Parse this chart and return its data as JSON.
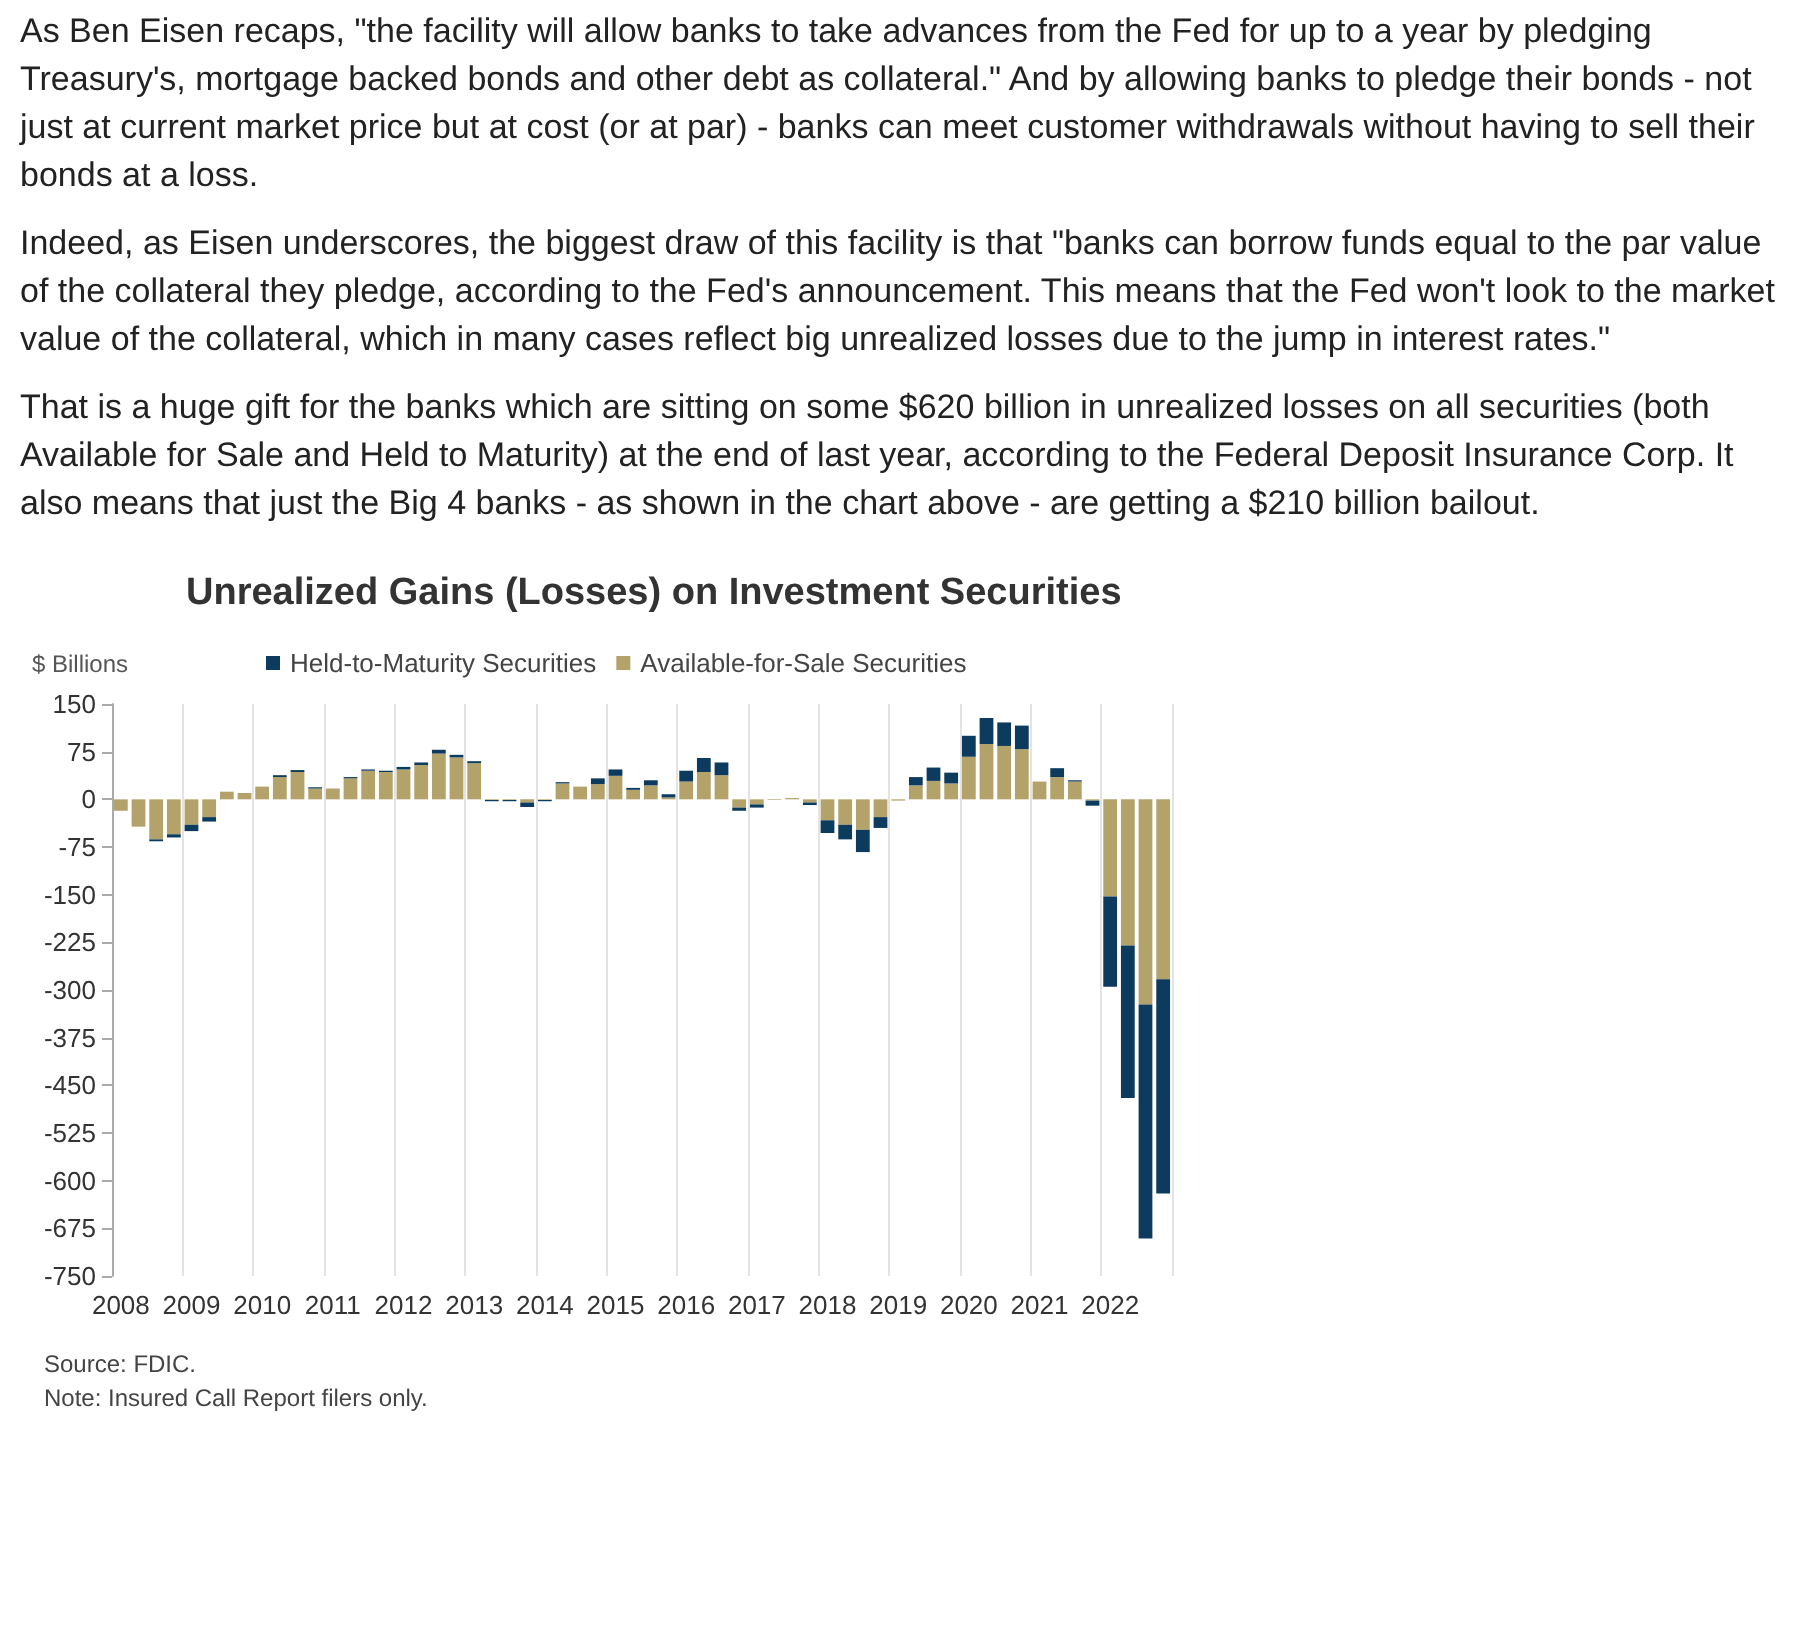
{
  "chart_data": {
    "type": "bar",
    "title": "Unrealized Gains (Losses) on Investment Securities",
    "ylabel": "$ Billions",
    "categories": [
      "2008",
      null,
      null,
      null,
      "2009",
      null,
      null,
      null,
      "2010",
      null,
      null,
      null,
      "2011",
      null,
      null,
      null,
      "2012",
      null,
      null,
      null,
      "2013",
      null,
      null,
      null,
      "2014",
      null,
      null,
      null,
      "2015",
      null,
      null,
      null,
      "2016",
      null,
      null,
      null,
      "2017",
      null,
      null,
      null,
      "2018",
      null,
      null,
      null,
      "2019",
      null,
      null,
      null,
      "2020",
      null,
      null,
      null,
      "2021",
      null,
      null,
      null,
      "2022",
      null,
      null,
      null
    ],
    "stacked": true,
    "series": [
      {
        "name": "Available-for-Sale Securities",
        "color": "#b3a36b",
        "values": [
          -18,
          -43,
          -63,
          -55,
          -40,
          -28,
          12,
          10,
          20,
          35,
          43,
          17,
          17,
          33,
          45,
          43,
          47,
          54,
          72,
          66,
          57,
          -1,
          -1,
          -5,
          -1,
          25,
          20,
          24,
          37,
          15,
          22,
          3,
          28,
          43,
          38,
          -13,
          -8,
          -1,
          2,
          -5,
          -33,
          -40,
          -48,
          -28,
          -2,
          22,
          29,
          25,
          67,
          87,
          84,
          79,
          28,
          35,
          28,
          -2,
          -153,
          -230,
          -323,
          -283
        ]
      },
      {
        "name": "Held-to-Maturity Securities",
        "color": "#0d3b5e",
        "values": [
          0,
          0,
          -3,
          -5,
          -10,
          -7,
          0,
          0,
          0,
          3,
          3,
          2,
          0,
          2,
          2,
          2,
          4,
          4,
          6,
          4,
          3,
          -2,
          -2,
          -7,
          -2,
          2,
          0,
          9,
          10,
          3,
          8,
          5,
          17,
          22,
          20,
          -5,
          -5,
          0,
          0,
          -4,
          -20,
          -23,
          -35,
          -17,
          0,
          13,
          21,
          17,
          33,
          41,
          37,
          37,
          0,
          14,
          2,
          -8,
          -142,
          -240,
          -368,
          -337
        ]
      }
    ],
    "ylim": [
      -750,
      150
    ],
    "yticks": [
      -750,
      -675,
      -600,
      -525,
      -450,
      -375,
      -300,
      -225,
      -150,
      -75,
      0,
      75,
      150
    ],
    "grid": "x",
    "legend": "top",
    "annotations": [
      "As Ben Eisen recaps, \"the facility will allow banks to take advances from the Fed for up to a year by pledging Treasury's, mortgage backed bonds and other debt as collateral.\" And by allowing banks to pledge their bonds - not just at current market price but at cost (or at par) -  banks can meet customer withdrawals without having to sell their bonds at a loss.",
      "Indeed, as Eisen underscores, the biggest draw of this facility is that \"banks can borrow funds equal to the par value of the collateral they pledge, according to the Fed's announcement. This means that the Fed won't look to the market value of the collateral, which in many cases reflect big unrealized losses due to the jump in interest rates.\"",
      "That is a huge gift for the banks which are sitting on some $620 billion in unrealized losses on all securities (both Available for Sale and Held to Maturity) at the end of last year, according to the Federal Deposit Insurance Corp. It also means that just the Big 4 banks - as shown in the chart above - are getting a $210 billion bailout.",
      "Source: FDIC.",
      "Note: Insured Call Report filers only."
    ]
  }
}
